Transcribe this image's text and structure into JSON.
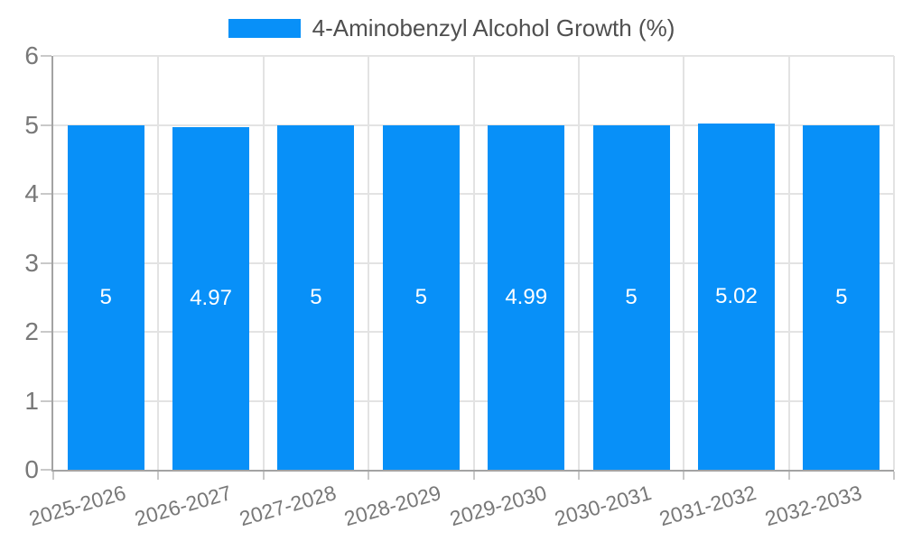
{
  "page": {
    "background": "#ffffff"
  },
  "chart_data": {
    "type": "bar",
    "title": "",
    "legend": {
      "label": "4-Aminobenzyl Alcohol Growth (%)",
      "position": "top-center"
    },
    "categories": [
      "2025-2026",
      "2026-2027",
      "2027-2028",
      "2028-2029",
      "2029-2030",
      "2030-2031",
      "2031-2032",
      "2032-2033"
    ],
    "values": [
      5,
      4.97,
      5,
      5,
      4.99,
      5,
      5.02,
      5
    ],
    "value_labels": [
      "5",
      "4.97",
      "5",
      "5",
      "4.99",
      "5",
      "5.02",
      "5"
    ],
    "xlabel": "",
    "ylabel": "",
    "ylim": [
      0,
      6
    ],
    "yticks": [
      0,
      1,
      2,
      3,
      4,
      5,
      6
    ],
    "grid": true,
    "colors": {
      "bar": "#0890F8",
      "axis": "#a3a3a3",
      "tick": "#c9c9c9",
      "gridline": "#e3e3e3",
      "axis_label": "#787878",
      "value_label": "#ffffff",
      "legend_text": "#4f4f4f",
      "background": "#ffffff"
    }
  }
}
